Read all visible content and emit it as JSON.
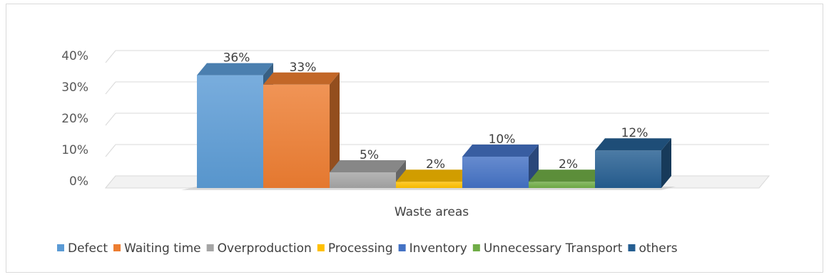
{
  "chart_data": {
    "type": "bar",
    "categories": [
      "Waste areas"
    ],
    "xlabel": "Waste areas",
    "ylabel": "",
    "ylim": [
      0,
      40
    ],
    "yticks": [
      "0%",
      "10%",
      "20%",
      "30%",
      "40%"
    ],
    "grid": true,
    "three_d": true,
    "legend_position": "bottom",
    "series": [
      {
        "name": "Defect",
        "value": 36,
        "label": "36%",
        "color": "#5b9bd5"
      },
      {
        "name": "Waiting time",
        "value": 33,
        "label": "33%",
        "color": "#ed7d31"
      },
      {
        "name": "Overproduction",
        "value": 5,
        "label": "5%",
        "color": "#a5a5a5"
      },
      {
        "name": "Processing",
        "value": 2,
        "label": "2%",
        "color": "#ffc000"
      },
      {
        "name": "Inventory",
        "value": 10,
        "label": "10%",
        "color": "#4472c4"
      },
      {
        "name": "Unnecessary Transport",
        "value": 2,
        "label": "2%",
        "color": "#70ad47"
      },
      {
        "name": "others",
        "value": 12,
        "label": "12%",
        "color": "#255e91"
      }
    ]
  }
}
